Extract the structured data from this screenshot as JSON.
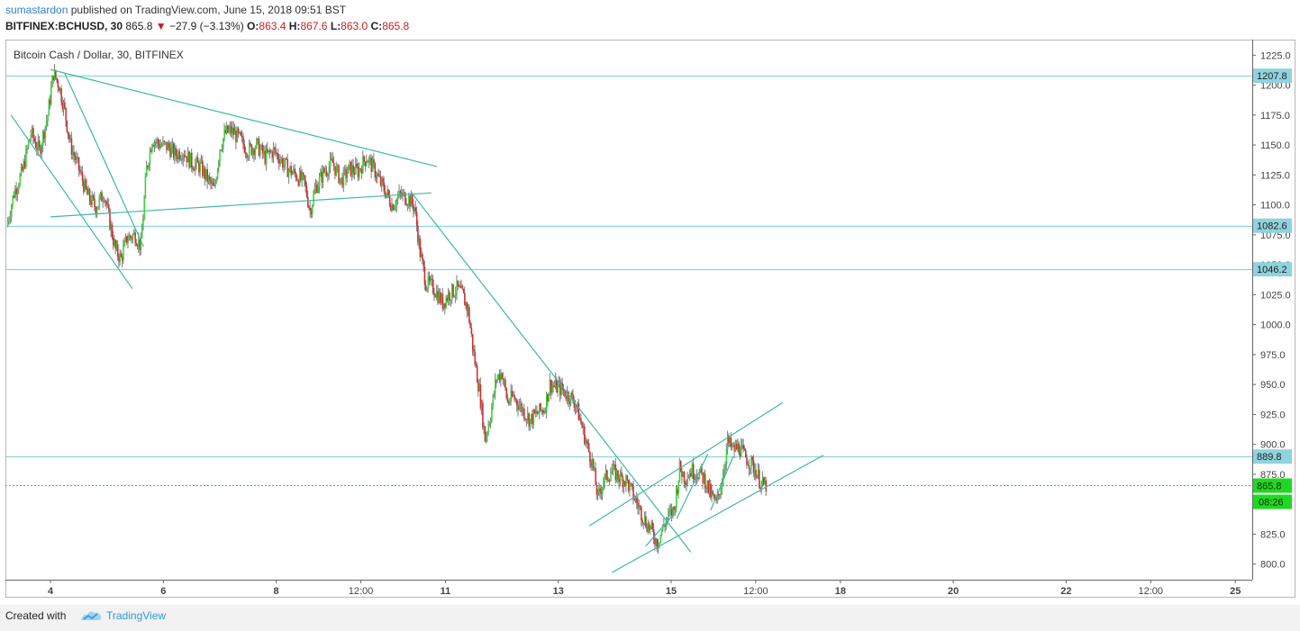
{
  "header": {
    "author": "sumastardon",
    "published_text": "published on TradingView.com, June 15, 2018 09:51 BST",
    "symbol": "BITFINEX:BCHUSD, 30",
    "last": "865.8",
    "change": "−27.9 (−3.13%)",
    "open_label": "O:",
    "open": "863.4",
    "high_label": "H:",
    "high": "867.6",
    "low_label": "L:",
    "low": "863.0",
    "close_label": "C:",
    "close": "865.8"
  },
  "chart_data": {
    "type": "candlestick",
    "title": "Bitcoin Cash / Dollar, 30, BITFINEX",
    "y_axis": {
      "ylim": [
        787.0,
        1238.0
      ],
      "ticks": [
        "1225.0",
        "1200.0",
        "1175.0",
        "1150.0",
        "1125.0",
        "1100.0",
        "1075.0",
        "1050.0",
        "1025.0",
        "1000.0",
        "975.0",
        "950.0",
        "925.0",
        "900.0",
        "875.0",
        "850.0",
        "825.0",
        "800.0"
      ],
      "position": "right"
    },
    "x_axis": {
      "ticks": [
        {
          "label": "4",
          "day": 4.0
        },
        {
          "label": "6",
          "day": 6.0
        },
        {
          "label": "8",
          "day": 8.0
        },
        {
          "label": "12:00",
          "day": 9.5
        },
        {
          "label": "11",
          "day": 11.0
        },
        {
          "label": "13",
          "day": 13.0
        },
        {
          "label": "15",
          "day": 15.0
        },
        {
          "label": "12:00",
          "day": 16.5
        },
        {
          "label": "18",
          "day": 18.0
        },
        {
          "label": "20",
          "day": 20.0
        },
        {
          "label": "22",
          "day": 22.0
        },
        {
          "label": "12:00",
          "day": 23.5
        },
        {
          "label": "25",
          "day": 25.0
        }
      ],
      "xlim": [
        3.2,
        25.3
      ]
    },
    "horizontal_levels": [
      {
        "label": "1207.8",
        "value": 1207.8,
        "color": "#8fd3de"
      },
      {
        "label": "1082.6",
        "value": 1082.6,
        "color": "#8fd3de"
      },
      {
        "label": "1046.2",
        "value": 1046.2,
        "color": "#8fd3de"
      },
      {
        "label": "889.8",
        "value": 889.8,
        "color": "#8fd3de"
      }
    ],
    "last_price": {
      "label": "865.8",
      "value": 865.8,
      "color": "#1fd91f",
      "countdown": "08:26"
    },
    "price_path": [
      [
        3.22,
        1082
      ],
      [
        3.35,
        1110
      ],
      [
        3.5,
        1128
      ],
      [
        3.65,
        1160
      ],
      [
        3.8,
        1145
      ],
      [
        3.95,
        1175
      ],
      [
        4.05,
        1210
      ],
      [
        4.15,
        1200
      ],
      [
        4.25,
        1178
      ],
      [
        4.35,
        1150
      ],
      [
        4.5,
        1130
      ],
      [
        4.65,
        1108
      ],
      [
        4.8,
        1098
      ],
      [
        4.95,
        1110
      ],
      [
        5.05,
        1085
      ],
      [
        5.15,
        1062
      ],
      [
        5.25,
        1055
      ],
      [
        5.35,
        1072
      ],
      [
        5.5,
        1075
      ],
      [
        5.6,
        1065
      ],
      [
        5.7,
        1130
      ],
      [
        5.8,
        1155
      ],
      [
        5.95,
        1150
      ],
      [
        6.1,
        1148
      ],
      [
        6.2,
        1142
      ],
      [
        6.35,
        1145
      ],
      [
        6.5,
        1135
      ],
      [
        6.65,
        1132
      ],
      [
        6.8,
        1120
      ],
      [
        6.9,
        1112
      ],
      [
        7.0,
        1148
      ],
      [
        7.1,
        1160
      ],
      [
        7.2,
        1162
      ],
      [
        7.35,
        1155
      ],
      [
        7.5,
        1145
      ],
      [
        7.65,
        1150
      ],
      [
        7.8,
        1140
      ],
      [
        7.95,
        1145
      ],
      [
        8.05,
        1140
      ],
      [
        8.2,
        1130
      ],
      [
        8.35,
        1125
      ],
      [
        8.5,
        1118
      ],
      [
        8.6,
        1095
      ],
      [
        8.7,
        1115
      ],
      [
        8.85,
        1128
      ],
      [
        9.0,
        1135
      ],
      [
        9.15,
        1120
      ],
      [
        9.3,
        1130
      ],
      [
        9.45,
        1128
      ],
      [
        9.6,
        1140
      ],
      [
        9.75,
        1128
      ],
      [
        9.85,
        1118
      ],
      [
        9.95,
        1110
      ],
      [
        10.05,
        1100
      ],
      [
        10.2,
        1108
      ],
      [
        10.35,
        1105
      ],
      [
        10.45,
        1098
      ],
      [
        10.55,
        1060
      ],
      [
        10.65,
        1035
      ],
      [
        10.8,
        1030
      ],
      [
        10.95,
        1018
      ],
      [
        11.05,
        1025
      ],
      [
        11.2,
        1030
      ],
      [
        11.3,
        1025
      ],
      [
        11.4,
        1012
      ],
      [
        11.5,
        975
      ],
      [
        11.6,
        945
      ],
      [
        11.7,
        905
      ],
      [
        11.8,
        925
      ],
      [
        11.9,
        955
      ],
      [
        12.0,
        960
      ],
      [
        12.1,
        935
      ],
      [
        12.2,
        940
      ],
      [
        12.35,
        930
      ],
      [
        12.5,
        920
      ],
      [
        12.6,
        925
      ],
      [
        12.75,
        930
      ],
      [
        12.85,
        950
      ],
      [
        12.95,
        948
      ],
      [
        13.05,
        946
      ],
      [
        13.2,
        940
      ],
      [
        13.3,
        935
      ],
      [
        13.4,
        918
      ],
      [
        13.5,
        900
      ],
      [
        13.6,
        885
      ],
      [
        13.7,
        855
      ],
      [
        13.8,
        870
      ],
      [
        13.95,
        878
      ],
      [
        14.1,
        872
      ],
      [
        14.2,
        870
      ],
      [
        14.35,
        855
      ],
      [
        14.45,
        845
      ],
      [
        14.55,
        835
      ],
      [
        14.65,
        828
      ],
      [
        14.75,
        818
      ],
      [
        14.85,
        830
      ],
      [
        14.95,
        840
      ],
      [
        15.05,
        845
      ],
      [
        15.15,
        880
      ],
      [
        15.25,
        872
      ],
      [
        15.35,
        878
      ],
      [
        15.5,
        876
      ],
      [
        15.6,
        870
      ],
      [
        15.7,
        858
      ],
      [
        15.8,
        850
      ],
      [
        15.9,
        870
      ],
      [
        16.0,
        902
      ],
      [
        16.1,
        895
      ],
      [
        16.2,
        898
      ],
      [
        16.3,
        890
      ],
      [
        16.4,
        885
      ],
      [
        16.5,
        878
      ],
      [
        16.6,
        866
      ],
      [
        16.68,
        865.8
      ]
    ],
    "trend_lines": [
      {
        "from": [
          4.0,
          1213
        ],
        "to": [
          10.85,
          1132
        ]
      },
      {
        "from": [
          3.3,
          1175
        ],
        "to": [
          5.45,
          1030
        ]
      },
      {
        "from": [
          4.25,
          1210
        ],
        "to": [
          5.65,
          1065
        ]
      },
      {
        "from": [
          4.0,
          1090
        ],
        "to": [
          10.75,
          1110
        ]
      },
      {
        "from": [
          10.4,
          1110
        ],
        "to": [
          15.35,
          810
        ]
      },
      {
        "from": [
          13.55,
          832
        ],
        "to": [
          16.98,
          935
        ]
      },
      {
        "from": [
          13.95,
          793
        ],
        "to": [
          17.7,
          891
        ]
      },
      {
        "from": [
          14.55,
          815
        ],
        "to": [
          15.05,
          842
        ]
      },
      {
        "from": [
          15.1,
          838
        ],
        "to": [
          15.65,
          892
        ]
      },
      {
        "from": [
          15.7,
          845
        ],
        "to": [
          16.1,
          890
        ]
      }
    ]
  },
  "footer": {
    "created_with": "Created with",
    "brand": "TradingView"
  }
}
